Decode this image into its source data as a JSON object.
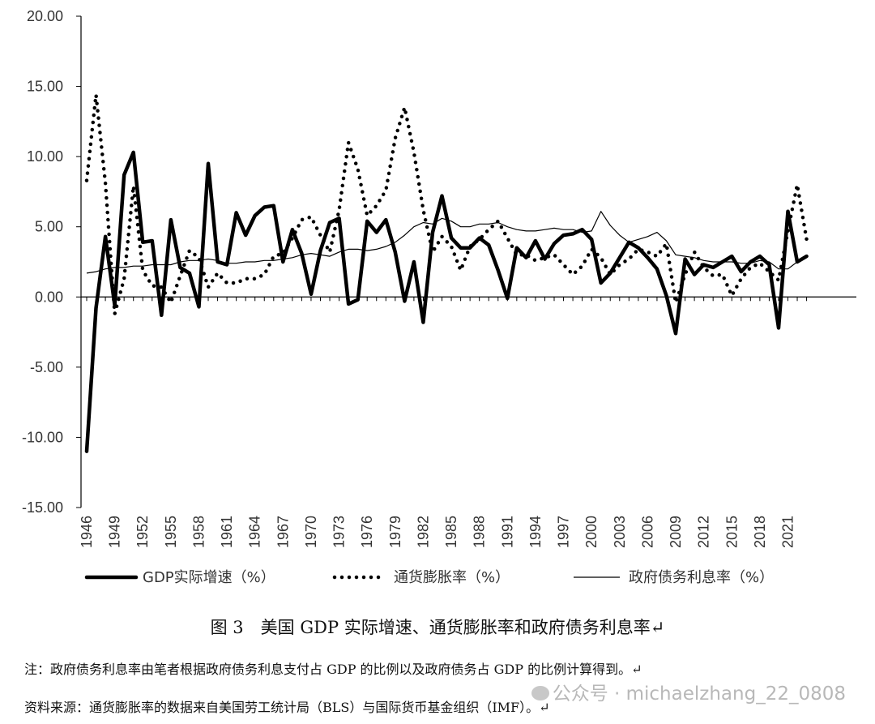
{
  "chart_data": {
    "type": "line",
    "ylim": [
      -15,
      20
    ],
    "yticks": [
      "20.00",
      "15.00",
      "10.00",
      "5.00",
      "0.00",
      "-5.00",
      "-10.00",
      "-15.00"
    ],
    "x": [
      1946,
      1947,
      1948,
      1949,
      1950,
      1951,
      1952,
      1953,
      1954,
      1955,
      1956,
      1957,
      1958,
      1959,
      1960,
      1961,
      1962,
      1963,
      1964,
      1965,
      1966,
      1967,
      1968,
      1969,
      1970,
      1971,
      1972,
      1973,
      1974,
      1975,
      1976,
      1977,
      1978,
      1979,
      1980,
      1981,
      1982,
      1983,
      1984,
      1985,
      1986,
      1987,
      1988,
      1989,
      1990,
      1991,
      1992,
      1993,
      1994,
      1995,
      1996,
      1997,
      1998,
      1999,
      2000,
      2001,
      2002,
      2003,
      2004,
      2005,
      2006,
      2007,
      2008,
      2009,
      2010,
      2011,
      2012,
      2013,
      2014,
      2015,
      2016,
      2017,
      2018,
      2019,
      2020,
      2021,
      2022,
      2023
    ],
    "xtick_labels": [
      "1946",
      "1949",
      "1952",
      "1955",
      "1958",
      "1961",
      "1964",
      "1967",
      "1970",
      "1973",
      "1976",
      "1979",
      "1982",
      "1985",
      "1988",
      "1991",
      "1994",
      "1997",
      "2000",
      "2003",
      "2006",
      "2009",
      "2012",
      "2015",
      "2018",
      "2021"
    ],
    "series": [
      {
        "name": "GDP实际增速（%）",
        "style": "solid-thick",
        "color": "#000000",
        "values": [
          -11.0,
          -0.8,
          4.3,
          -0.6,
          8.7,
          10.3,
          3.9,
          4.0,
          -1.3,
          5.5,
          2.1,
          1.7,
          -0.7,
          9.5,
          2.5,
          2.3,
          6.0,
          4.4,
          5.8,
          6.4,
          6.5,
          2.5,
          4.8,
          3.1,
          0.2,
          3.3,
          5.3,
          5.6,
          -0.5,
          -0.2,
          5.4,
          4.6,
          5.5,
          3.2,
          -0.3,
          2.5,
          -1.8,
          4.6,
          7.2,
          4.2,
          3.5,
          3.5,
          4.2,
          3.7,
          1.9,
          -0.1,
          3.5,
          2.8,
          4.0,
          2.7,
          3.8,
          4.4,
          4.5,
          4.8,
          4.1,
          1.0,
          1.7,
          2.8,
          3.9,
          3.5,
          2.8,
          2.0,
          0.1,
          -2.6,
          2.7,
          1.6,
          2.3,
          2.1,
          2.5,
          2.9,
          1.8,
          2.5,
          2.9,
          2.3,
          -2.2,
          6.1,
          2.5,
          2.9
        ]
      },
      {
        "name": "通货膨胀率（%）",
        "style": "dotted",
        "color": "#000000",
        "values": [
          8.3,
          14.4,
          8.1,
          -1.2,
          1.3,
          7.9,
          1.9,
          0.8,
          0.7,
          -0.4,
          1.5,
          3.3,
          2.8,
          0.7,
          1.7,
          1.0,
          1.0,
          1.3,
          1.3,
          1.6,
          2.9,
          3.1,
          4.2,
          5.5,
          5.7,
          4.4,
          3.2,
          6.2,
          11.0,
          9.1,
          5.8,
          6.5,
          7.6,
          11.3,
          13.5,
          10.3,
          6.2,
          3.2,
          4.3,
          3.6,
          1.9,
          3.6,
          4.1,
          4.8,
          5.4,
          4.2,
          3.0,
          3.0,
          2.6,
          2.8,
          3.0,
          2.3,
          1.6,
          2.2,
          3.4,
          2.8,
          1.6,
          2.3,
          2.7,
          3.4,
          3.2,
          2.9,
          3.8,
          -0.4,
          1.6,
          3.2,
          2.1,
          1.5,
          1.6,
          0.1,
          1.3,
          2.1,
          2.4,
          1.8,
          1.2,
          4.7,
          8.0,
          4.1
        ]
      },
      {
        "name": "政府债务利息率（%）",
        "style": "thin",
        "color": "#000000",
        "values": [
          1.7,
          1.8,
          2.0,
          2.1,
          2.1,
          2.2,
          2.2,
          2.3,
          2.3,
          2.3,
          2.5,
          2.6,
          2.6,
          2.7,
          2.6,
          2.4,
          2.4,
          2.5,
          2.5,
          2.6,
          2.6,
          2.7,
          2.8,
          3.0,
          3.1,
          3.0,
          2.9,
          3.2,
          3.4,
          3.4,
          3.3,
          3.4,
          3.6,
          3.9,
          4.4,
          5.0,
          5.3,
          5.2,
          5.6,
          5.4,
          5.0,
          5.0,
          5.2,
          5.2,
          5.3,
          5.0,
          4.8,
          4.7,
          4.7,
          4.8,
          4.9,
          4.8,
          4.8,
          4.6,
          4.7,
          6.1,
          5.1,
          4.4,
          3.9,
          4.1,
          4.3,
          4.6,
          4.0,
          3.0,
          2.9,
          2.8,
          2.6,
          2.5,
          2.5,
          2.5,
          2.4,
          2.4,
          2.6,
          2.5,
          2.0,
          2.0,
          2.5,
          3.0
        ]
      }
    ],
    "legend_position": "bottom",
    "grid": false
  },
  "caption": "图 3　美国 GDP 实际增速、通货膨胀率和政府债务利息率↵",
  "note": "注：政府债务利息率由笔者根据政府债务利息支付占 GDP 的比例以及政府债务占 GDP 的比例计算得到。↵",
  "source": "资料来源：通货膨胀率的数据来自美国劳工统计局（BLS）与国际货币基金组织（IMF）。↵",
  "watermark": "公众号 · michaelzhang_22_0808",
  "watermark_icon": "wechat-icon"
}
